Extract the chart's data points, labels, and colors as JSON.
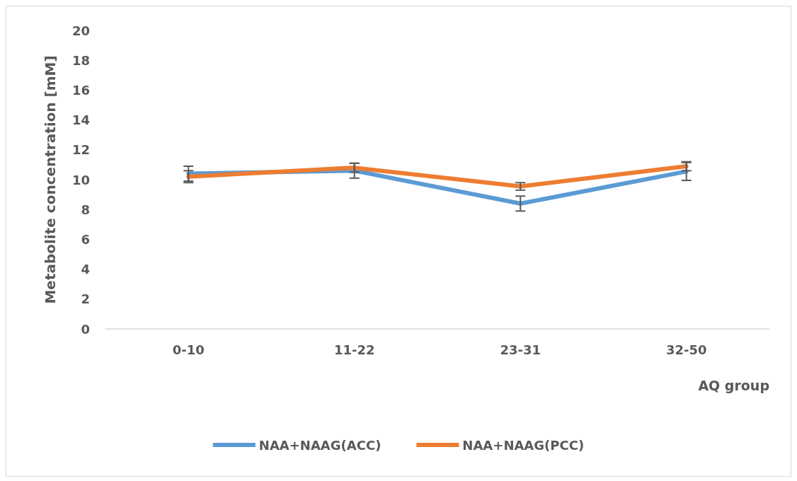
{
  "chart_data": {
    "type": "line",
    "xlabel": "AQ group",
    "ylabel": "Metabolite concentration [mM]",
    "categories": [
      "0-10",
      "11-22",
      "23-31",
      "32-50"
    ],
    "series": [
      {
        "name": "NAA+NAAG(ACC)",
        "color": "#5b9bd5",
        "values": [
          10.4,
          10.6,
          8.4,
          10.55
        ],
        "errors": [
          0.5,
          0.5,
          0.5,
          0.6
        ]
      },
      {
        "name": "NAA+NAAG(PCC)",
        "color": "#ed7d31",
        "values": [
          10.2,
          10.8,
          9.55,
          10.9
        ],
        "errors": [
          0.4,
          0.3,
          0.25,
          0.3
        ]
      }
    ],
    "ylim": [
      0,
      20
    ],
    "yticks": [
      0,
      2,
      4,
      6,
      8,
      10,
      12,
      14,
      16,
      18,
      20
    ],
    "grid": false,
    "legend": "bottom",
    "marker": "none",
    "line_style": "solid"
  }
}
